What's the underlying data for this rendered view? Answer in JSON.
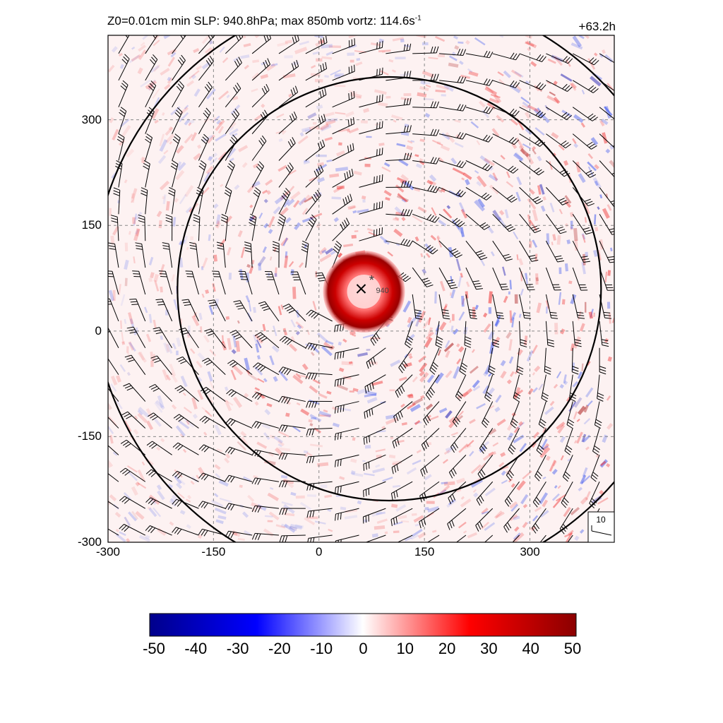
{
  "header": {
    "title_main": "Z0=0.01cm  min SLP: 940.8hPa; max 850mb vortz: 114.6s",
    "title_sup": "-1",
    "time_label": "+63.2h"
  },
  "chart_data": {
    "type": "heatmap",
    "field": "850mb relative vorticity with wind barbs",
    "xlim": [
      -300,
      420
    ],
    "ylim": [
      -300,
      420
    ],
    "x_ticks": [
      "-300",
      "-150",
      "0",
      "150",
      "300"
    ],
    "y_ticks": [
      "300",
      "150",
      "0",
      "-150",
      "-300"
    ],
    "grid": "dashed",
    "storm_center": {
      "x": 60,
      "y": 60,
      "marker": "x"
    },
    "min_slp_marker": {
      "x": 75,
      "y": 70,
      "label": "940"
    },
    "eyewall_radius": 45,
    "barb_reference": {
      "label": "10"
    },
    "colorbar": {
      "min": -50,
      "max": 50,
      "ticks": [
        "-50",
        "-40",
        "-30",
        "-20",
        "-10",
        "0",
        "10",
        "20",
        "30",
        "40",
        "50"
      ],
      "colors": [
        "#00008b",
        "#0000ff",
        "#ffffff",
        "#ff0000",
        "#8b0000"
      ]
    }
  }
}
